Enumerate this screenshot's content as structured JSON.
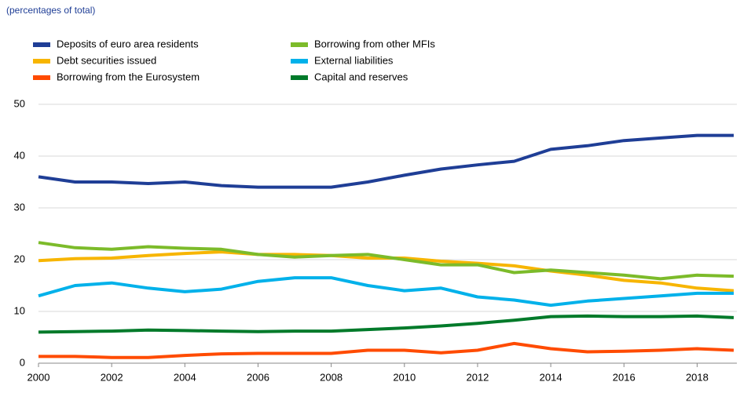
{
  "chart_data": {
    "type": "line",
    "subtitle": "(percentages of total)",
    "x": [
      2000,
      2001,
      2002,
      2003,
      2004,
      2005,
      2006,
      2007,
      2008,
      2009,
      2010,
      2011,
      2012,
      2013,
      2014,
      2015,
      2016,
      2017,
      2018,
      2019
    ],
    "series": [
      {
        "name": "Deposits of euro area residents",
        "color": "#1f3e96",
        "values": [
          36,
          35,
          35,
          34.7,
          35,
          34.3,
          34,
          34,
          34,
          35,
          36.3,
          37.5,
          38.3,
          39,
          41.3,
          42,
          43,
          43.5,
          44,
          44
        ]
      },
      {
        "name": "Debt securities issued",
        "color": "#f7b500",
        "values": [
          19.8,
          20.2,
          20.3,
          20.8,
          21.2,
          21.5,
          21,
          21,
          20.8,
          20.3,
          20.3,
          19.7,
          19.3,
          18.8,
          17.8,
          17,
          16,
          15.5,
          14.5,
          14
        ]
      },
      {
        "name": "Borrowing from the Eurosystem",
        "color": "#ff4b00",
        "values": [
          1.3,
          1.3,
          1.1,
          1.1,
          1.5,
          1.8,
          1.9,
          1.9,
          1.9,
          2.5,
          2.5,
          2,
          2.5,
          3.8,
          2.8,
          2.2,
          2.3,
          2.5,
          2.8,
          2.5
        ]
      },
      {
        "name": "Borrowing from other MFIs",
        "color": "#7cbb2a",
        "values": [
          23.3,
          22.3,
          22,
          22.5,
          22.2,
          22,
          21,
          20.5,
          20.8,
          21,
          20,
          19,
          19,
          17.5,
          18,
          17.5,
          17,
          16.3,
          17,
          16.8
        ]
      },
      {
        "name": "External liabilities",
        "color": "#00b1ea",
        "values": [
          13,
          15,
          15.5,
          14.5,
          13.8,
          14.3,
          15.8,
          16.5,
          16.5,
          15,
          14,
          14.5,
          12.8,
          12.2,
          11.2,
          12,
          12.5,
          13,
          13.5,
          13.5
        ]
      },
      {
        "name": "Capital and reserves",
        "color": "#007a2a",
        "values": [
          6,
          6.1,
          6.2,
          6.4,
          6.3,
          6.2,
          6.1,
          6.2,
          6.2,
          6.5,
          6.8,
          7.2,
          7.7,
          8.3,
          9,
          9.1,
          9,
          9,
          9.1,
          8.8
        ]
      }
    ],
    "xlim": [
      2000,
      2019
    ],
    "xticks": [
      2000,
      2002,
      2004,
      2006,
      2008,
      2010,
      2012,
      2014,
      2016,
      2018
    ],
    "ylim": [
      0,
      50
    ],
    "yticks": [
      0,
      10,
      20,
      30,
      40,
      50
    ],
    "grid": true
  }
}
